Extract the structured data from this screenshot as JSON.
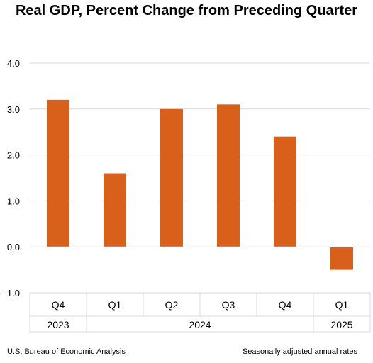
{
  "chart_data": {
    "type": "bar",
    "title": "Real GDP, Percent Change from Preceding Quarter",
    "categories": [
      "Q4",
      "Q1",
      "Q2",
      "Q3",
      "Q4",
      "Q1"
    ],
    "years": [
      {
        "label": "2023",
        "span": 1
      },
      {
        "label": "2024",
        "span": 4
      },
      {
        "label": "2025",
        "span": 1
      }
    ],
    "values": [
      3.2,
      1.6,
      3.0,
      3.1,
      2.4,
      -0.5
    ],
    "yticks": [
      "4.0",
      "3.0",
      "2.0",
      "1.0",
      "0.0",
      "-1.0"
    ],
    "ylim": [
      -1,
      4
    ],
    "grid": true,
    "bar_color": "#D9601A",
    "grid_color": "#D9D9D9"
  },
  "footer": {
    "source": "U.S. Bureau of Economic Analysis",
    "note": "Seasonally adjusted annual rates"
  }
}
